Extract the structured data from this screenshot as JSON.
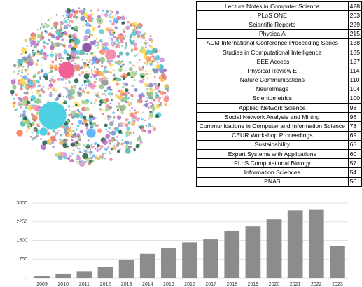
{
  "table": {
    "rows": [
      [
        "Lecture Notes in Computer Science",
        "428"
      ],
      [
        "PLoS ONE",
        "263"
      ],
      [
        "Scientific Reports",
        "229"
      ],
      [
        "Physica A",
        "215"
      ],
      [
        "ACM International Conference Proceeding Series",
        "138"
      ],
      [
        "Studies in Computational Intelligence",
        "135"
      ],
      [
        "IEEE Access",
        "127"
      ],
      [
        "Physical Review E",
        "114"
      ],
      [
        "Nature Communications",
        "110"
      ],
      [
        "NeuroImage",
        "104"
      ],
      [
        "Scientometrics",
        "100"
      ],
      [
        "Applied Network Science",
        "98"
      ],
      [
        "Social Network Analysis and Mining",
        "96"
      ],
      [
        "Communications in Computer and Information Science",
        "78"
      ],
      [
        "CEUR Workshop Proceedings",
        "69"
      ],
      [
        "Sustainability",
        "65"
      ],
      [
        "Expert Systems with Applications",
        "60"
      ],
      [
        "PLoS Computational Biology",
        "57"
      ],
      [
        "Information Sciences",
        "54"
      ],
      [
        "PNAS",
        "50"
      ]
    ]
  },
  "chart_data": {
    "type": "bar",
    "categories": [
      "2009",
      "2010",
      "2011",
      "2012",
      "2013",
      "2014",
      "2015",
      "2016",
      "2017",
      "2018",
      "2019",
      "2020",
      "2021",
      "2022",
      "2023"
    ],
    "values": [
      60,
      170,
      270,
      450,
      730,
      960,
      1180,
      1420,
      1540,
      1880,
      2070,
      2350,
      2710,
      2730,
      1290
    ],
    "color": "#8c8c8c",
    "ylim": [
      0,
      3000
    ],
    "yticks": [
      0,
      750,
      1500,
      2250,
      3000
    ],
    "grid": true
  }
}
